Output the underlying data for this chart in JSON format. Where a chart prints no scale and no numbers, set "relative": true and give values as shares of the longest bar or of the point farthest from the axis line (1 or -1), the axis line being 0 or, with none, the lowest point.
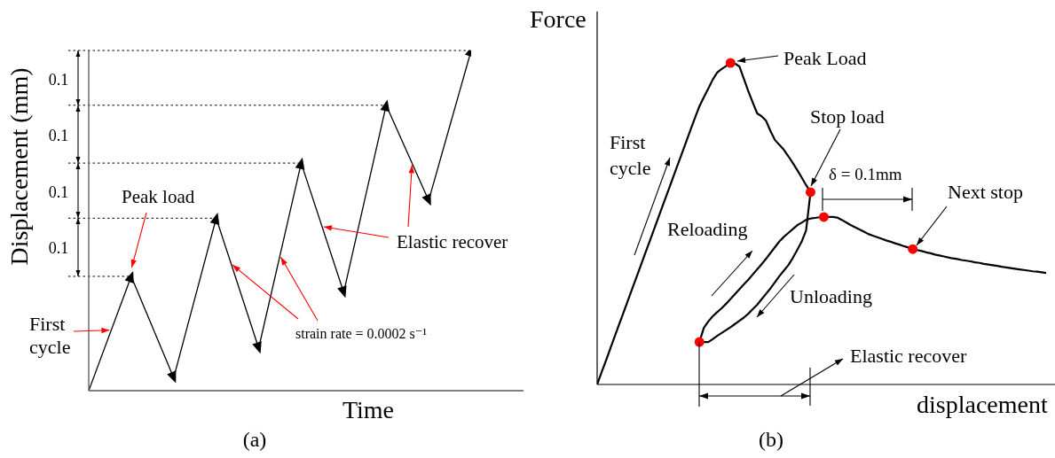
{
  "chart_data": [
    {
      "type": "line",
      "title": "(a)",
      "xlabel": "Time",
      "ylabel": "Displacement (mm)",
      "relative": true,
      "marker": "triangle",
      "color": "#000000",
      "categories": [
        null,
        null,
        null,
        null,
        null,
        null,
        null,
        null,
        null,
        null
      ],
      "values": [
        0,
        0.336,
        0.038,
        0.507,
        0.125,
        0.669,
        0.289,
        0.839,
        0.559,
        1
      ],
      "ref_lines": [
        {
          "axis": "y",
          "value": 0.336,
          "color": "#000000",
          "line_style": "dotted"
        },
        {
          "axis": "y",
          "value": 0.507,
          "color": "#000000",
          "line_style": "dotted"
        },
        {
          "axis": "y",
          "value": 0.669,
          "color": "#000000",
          "line_style": "dotted"
        },
        {
          "axis": "y",
          "value": 0.839,
          "color": "#000000",
          "line_style": "dotted"
        },
        {
          "axis": "y",
          "value": 1,
          "color": "#000000",
          "line_style": "dotted"
        }
      ],
      "annotations": [
        "Peak load",
        "First cycle",
        "strain rate = 0.0002 s⁻¹",
        "Elastic recover",
        "0.1",
        "0.1",
        "0.1",
        "0.1"
      ]
    },
    {
      "type": "line",
      "title": "(b)",
      "xlabel": "displacement",
      "ylabel": "Force",
      "relative": true,
      "categories": [
        null,
        null,
        null,
        null,
        null,
        null,
        null,
        null,
        null,
        null,
        null,
        null,
        null,
        null,
        null,
        null,
        null,
        null,
        null,
        null,
        null,
        null,
        null,
        null,
        null,
        null,
        null,
        null,
        null,
        null,
        null,
        null,
        null,
        null,
        null,
        null,
        null,
        null,
        null,
        null,
        null,
        null,
        null,
        null,
        null,
        null,
        null,
        null,
        null,
        null,
        null,
        null,
        null,
        null,
        null,
        null,
        null,
        null,
        null,
        null,
        null,
        null,
        null,
        null,
        null,
        null,
        null,
        null,
        null,
        null,
        null,
        null,
        null,
        null,
        null,
        null,
        null,
        null,
        null,
        null,
        null,
        null,
        null,
        null,
        null,
        null,
        null,
        null,
        null,
        null,
        null,
        null,
        null,
        null,
        null,
        null,
        null,
        null,
        null,
        null,
        null,
        null
      ],
      "series": [
        {
          "type": "line",
          "color": "#000000",
          "marker": "none",
          "values": [
            0,
            0.038,
            0.075,
            0.113,
            0.151,
            0.189,
            0.226,
            0.264,
            0.302,
            0.339,
            0.377,
            0.415,
            0.452,
            0.49,
            0.528,
            0.566,
            0.603,
            0.641,
            0.679,
            0.716,
            0.754,
            0.792,
            0.829,
            0.865,
            0.893,
            0.92,
            0.948,
            0.97,
            0.981,
            0.99,
            1,
            0.998,
            0.989,
            0.951,
            0.912,
            0.877,
            0.843,
            0.834,
            0.82,
            0.788,
            0.76,
            0.745,
            0.73,
            0.71,
            0.689,
            0.667,
            0.644,
            0.62,
            0.598,
            null,
            null,
            null,
            null,
            null,
            null,
            null,
            null,
            null,
            null,
            null,
            null,
            null,
            null,
            null,
            null,
            null,
            null,
            null,
            null,
            null,
            null,
            null,
            null,
            null,
            null,
            null,
            null,
            null,
            null,
            null,
            null,
            null,
            null,
            null,
            null,
            null,
            null,
            null,
            null,
            null,
            null,
            null,
            null,
            null,
            null,
            null,
            null,
            null,
            null,
            null,
            null,
            null
          ]
        },
        {
          "type": "line",
          "color": "#000000",
          "marker": "none",
          "values": [
            null,
            null,
            null,
            null,
            null,
            null,
            null,
            null,
            null,
            null,
            null,
            null,
            null,
            null,
            null,
            null,
            null,
            null,
            null,
            null,
            null,
            null,
            null,
            0.132,
            0.132,
            0.132,
            0.141,
            0.151,
            0.16,
            0.169,
            0.178,
            0.188,
            0.198,
            0.208,
            0.22,
            0.234,
            0.248,
            0.265,
            0.282,
            0.299,
            0.318,
            0.337,
            0.354,
            0.371,
            0.393,
            0.418,
            0.444,
            0.479,
            0.598,
            null,
            null,
            null,
            null,
            null,
            null,
            null,
            null,
            null,
            null,
            null,
            null,
            null,
            null,
            null,
            null,
            null,
            null,
            null,
            null,
            null,
            null,
            null,
            null,
            null,
            null,
            null,
            null,
            null,
            null,
            null,
            null,
            null,
            null,
            null,
            null,
            null,
            null,
            null,
            null,
            null,
            null,
            null,
            null,
            null,
            null,
            null,
            null,
            null,
            null,
            null,
            null,
            null
          ]
        },
        {
          "type": "line",
          "color": "#000000",
          "marker": "none",
          "values": [
            null,
            null,
            null,
            null,
            null,
            null,
            null,
            null,
            null,
            null,
            null,
            null,
            null,
            null,
            null,
            null,
            null,
            null,
            null,
            null,
            null,
            null,
            null,
            0.132,
            0.176,
            0.196,
            0.212,
            0.225,
            0.237,
            0.251,
            0.266,
            0.281,
            0.296,
            0.311,
            0.326,
            0.342,
            0.358,
            0.374,
            0.391,
            0.409,
            0.427,
            0.445,
            0.459,
            0.471,
            0.483,
            0.495,
            0.503,
            0.512,
            0.516,
            0.518,
            0.52,
            0.521,
            0.521,
            0.521,
            0.519,
            0.512,
            0.504,
            0.496,
            0.489,
            0.482,
            0.475,
            0.468,
            0.463,
            0.458,
            0.453,
            0.448,
            0.444,
            0.439,
            0.435,
            0.43,
            0.426,
            0.421,
            0.418,
            0.415,
            0.411,
            0.408,
            0.404,
            0.401,
            0.398,
            0.395,
            0.392,
            0.39,
            0.387,
            0.385,
            0.383,
            0.38,
            0.378,
            0.375,
            0.373,
            0.371,
            0.369,
            0.366,
            0.364,
            0.362,
            0.36,
            0.358,
            0.356,
            0.354,
            0.352,
            0.351,
            0.349,
            0.347
          ]
        }
      ],
      "annotations": [
        "Peak Load",
        "Stop load",
        "δ = 0.1mm",
        "Next stop",
        "First cycle",
        "Reloading",
        "Unloading",
        "Elastic recover"
      ]
    }
  ]
}
